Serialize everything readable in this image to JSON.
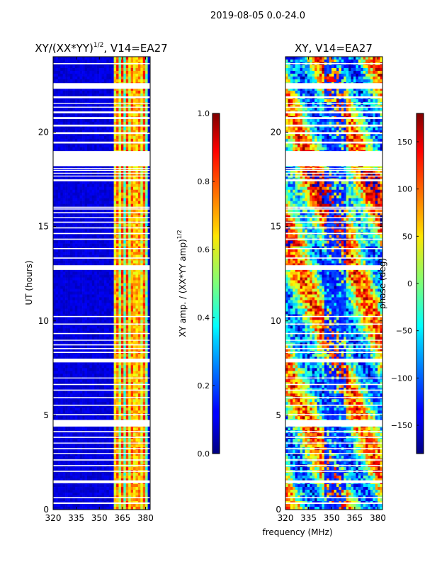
{
  "suptitle": "2019-08-05 0.0-24.0",
  "chart_data": [
    {
      "type": "heatmap",
      "title_main": "XY/(XX*YY)",
      "title_sup": "1/2",
      "title_rest": ", V14=EA27",
      "xlabel": "",
      "ylabel": "UT (hours)",
      "xlim": [
        320,
        383
      ],
      "ylim": [
        0,
        24
      ],
      "xticks": [
        320,
        335,
        350,
        365,
        380
      ],
      "yticks": [
        0,
        5,
        10,
        15,
        20
      ],
      "colorbar": {
        "label_main": "XY amp. / (XX*YY amp)",
        "label_sup": "1/2",
        "range": [
          0.0,
          1.0
        ],
        "ticks": [
          "0.0",
          "0.2",
          "0.4",
          "0.6",
          "0.8",
          "1.0"
        ],
        "tick_values": [
          0.0,
          0.2,
          0.4,
          0.6,
          0.8,
          1.0
        ]
      }
    },
    {
      "type": "heatmap",
      "title_main": "XY, V14=EA27",
      "xlabel": "frequency (MHz)",
      "ylabel": "",
      "xlim": [
        320,
        383
      ],
      "ylim": [
        0,
        24
      ],
      "xticks": [
        320,
        335,
        350,
        365,
        380
      ],
      "yticks": [
        0,
        5,
        10,
        15,
        20
      ],
      "colorbar": {
        "label_main": "phase (deg)",
        "range": [
          -180,
          180
        ],
        "ticks": [
          "150",
          "100",
          "50",
          "0",
          "−50",
          "−100",
          "−150"
        ],
        "tick_values": [
          150,
          100,
          50,
          0,
          -50,
          -100,
          -150
        ]
      }
    }
  ],
  "flagged_ut_hours": [
    [
      0.3,
      0.38
    ],
    [
      0.6,
      0.66
    ],
    [
      1.4,
      1.55
    ],
    [
      2.0,
      2.06
    ],
    [
      2.3,
      2.36
    ],
    [
      2.6,
      2.66
    ],
    [
      2.95,
      3.0
    ],
    [
      3.2,
      3.26
    ],
    [
      3.5,
      3.55
    ],
    [
      3.8,
      3.86
    ],
    [
      4.1,
      4.16
    ],
    [
      4.4,
      4.75
    ],
    [
      5.0,
      5.06
    ],
    [
      5.5,
      5.56
    ],
    [
      5.9,
      5.96
    ],
    [
      6.3,
      6.36
    ],
    [
      6.6,
      6.66
    ],
    [
      6.95,
      7.0
    ],
    [
      7.8,
      8.0
    ],
    [
      8.3,
      8.36
    ],
    [
      8.5,
      8.56
    ],
    [
      8.7,
      8.76
    ],
    [
      8.95,
      9.0
    ],
    [
      9.3,
      9.36
    ],
    [
      9.8,
      9.86
    ],
    [
      10.2,
      10.26
    ],
    [
      12.7,
      12.95
    ],
    [
      13.3,
      13.36
    ],
    [
      13.8,
      13.86
    ],
    [
      14.3,
      14.36
    ],
    [
      14.6,
      14.66
    ],
    [
      14.9,
      14.96
    ],
    [
      15.2,
      15.26
    ],
    [
      15.45,
      15.5
    ],
    [
      15.7,
      15.76
    ],
    [
      15.9,
      15.96
    ],
    [
      16.0,
      16.05
    ],
    [
      17.4,
      17.5
    ],
    [
      17.65,
      17.7
    ],
    [
      17.8,
      17.85
    ],
    [
      17.95,
      18.0
    ],
    [
      18.05,
      18.1
    ],
    [
      18.2,
      19.0
    ],
    [
      19.4,
      19.5
    ],
    [
      19.9,
      20.0
    ],
    [
      20.3,
      20.4
    ],
    [
      20.7,
      20.8
    ],
    [
      21.0,
      21.1
    ],
    [
      21.3,
      21.35
    ],
    [
      21.5,
      21.55
    ],
    [
      21.8,
      21.9
    ],
    [
      22.3,
      22.6
    ],
    [
      23.6,
      23.66
    ]
  ]
}
